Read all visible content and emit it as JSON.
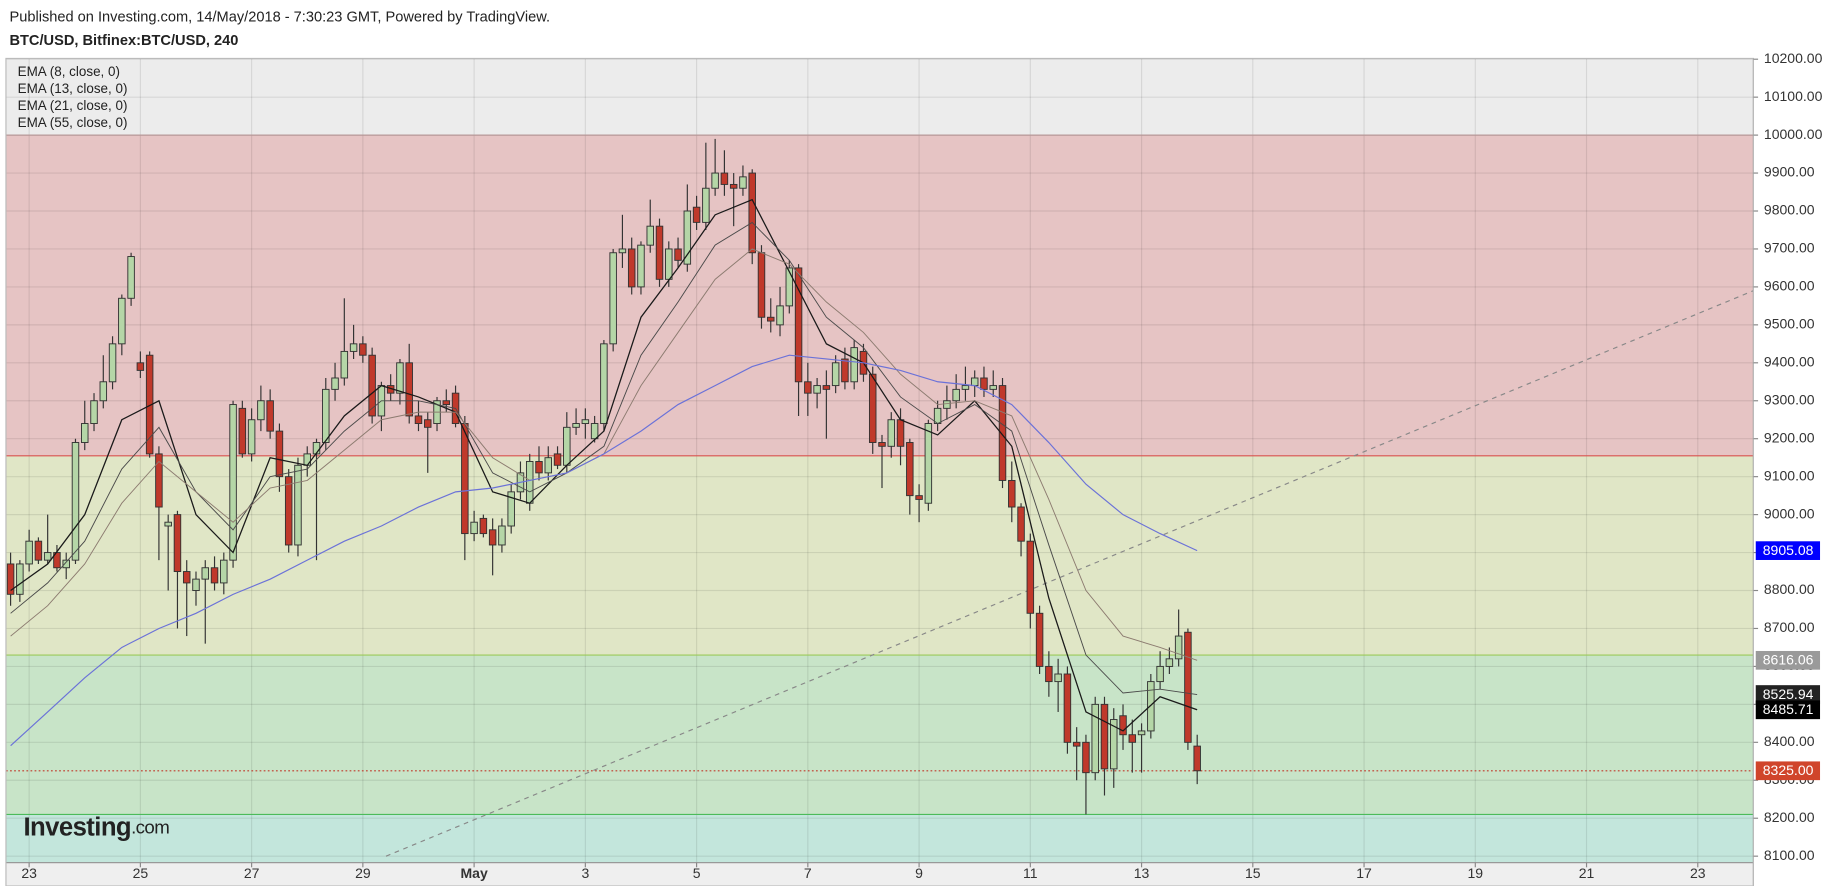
{
  "chart_data": {
    "type": "candlestick",
    "subtitle": "Published on Investing.com, 14/May/2018 - 7:30:23 GMT, Powered by TradingView.",
    "title": "BTC/USD, Bitfinex:BTC/USD, 240",
    "logo": [
      "Investing",
      ".com"
    ],
    "up_color": "#b5d6a7",
    "down_color": "#c0392b",
    "xlim": [
      -0.5,
      188
    ],
    "ylim": [
      8083,
      10202
    ],
    "xticks": [
      {
        "value": 2,
        "label": "23"
      },
      {
        "value": 14,
        "label": "25"
      },
      {
        "value": 26,
        "label": "27"
      },
      {
        "value": 38,
        "label": "29"
      },
      {
        "value": 50,
        "label": "May"
      },
      {
        "value": 62,
        "label": "3"
      },
      {
        "value": 74,
        "label": "5"
      },
      {
        "value": 86,
        "label": "7"
      },
      {
        "value": 98,
        "label": "9"
      },
      {
        "value": 110,
        "label": "11"
      },
      {
        "value": 122,
        "label": "13"
      },
      {
        "value": 134,
        "label": "15"
      },
      {
        "value": 146,
        "label": "17"
      },
      {
        "value": 158,
        "label": "19"
      },
      {
        "value": 170,
        "label": "21"
      },
      {
        "value": 182,
        "label": "23"
      }
    ],
    "yticks": [
      {
        "value": 8100,
        "label": "8100.00"
      },
      {
        "value": 8200,
        "label": "8200.00"
      },
      {
        "value": 8300,
        "label": "8300.00"
      },
      {
        "value": 8400,
        "label": "8400.00"
      },
      {
        "value": 8500,
        "label": "8500.00"
      },
      {
        "value": 8600,
        "label": "8600.00"
      },
      {
        "value": 8700,
        "label": "8700.00"
      },
      {
        "value": 8800,
        "label": "8800.00"
      },
      {
        "value": 8900,
        "label": "8900.00"
      },
      {
        "value": 9000,
        "label": "9000.00"
      },
      {
        "value": 9100,
        "label": "9100.00"
      },
      {
        "value": 9200,
        "label": "9200.00"
      },
      {
        "value": 9300,
        "label": "9300.00"
      },
      {
        "value": 9400,
        "label": "9400.00"
      },
      {
        "value": 9500,
        "label": "9500.00"
      },
      {
        "value": 9600,
        "label": "9600.00"
      },
      {
        "value": 9700,
        "label": "9700.00"
      },
      {
        "value": 9800,
        "label": "9800.00"
      },
      {
        "value": 9900,
        "label": "9900.00"
      },
      {
        "value": 10000,
        "label": "10000.00"
      },
      {
        "value": 10100,
        "label": "10100.00"
      },
      {
        "value": 10200,
        "label": "10200.00"
      }
    ],
    "grid": true,
    "bands": [
      {
        "from": 10202,
        "to": 10000,
        "color": "#ececec"
      },
      {
        "from": 10000,
        "to": 9155,
        "color": "#e6c4c4"
      },
      {
        "from": 9155,
        "to": 8630,
        "color": "#e0e6c6"
      },
      {
        "from": 8630,
        "to": 8210,
        "color": "#c8e4c8"
      },
      {
        "from": 8210,
        "to": 8083,
        "color": "#c3e6dc"
      }
    ],
    "levels": [
      {
        "value": 10000,
        "color": "#b89a9a"
      },
      {
        "value": 9155,
        "color": "#d9534f"
      },
      {
        "value": 8630,
        "color": "#9cc95a"
      },
      {
        "value": 8210,
        "color": "#4cbb5a"
      }
    ],
    "last_price_line": {
      "value": 8325,
      "color": "#c0392b"
    },
    "trendline": {
      "x": [
        40.5,
        188
      ],
      "values": [
        8100,
        9590
      ],
      "color": "#888"
    },
    "ohlc": [
      [
        8870,
        8900,
        8760,
        8790
      ],
      [
        8790,
        8880,
        8770,
        8870
      ],
      [
        8870,
        8960,
        8850,
        8930
      ],
      [
        8930,
        8940,
        8870,
        8880
      ],
      [
        8880,
        9000,
        8870,
        8900
      ],
      [
        8900,
        8920,
        8850,
        8860
      ],
      [
        8860,
        8900,
        8830,
        8880
      ],
      [
        8880,
        9200,
        8870,
        9190
      ],
      [
        9190,
        9300,
        9170,
        9240
      ],
      [
        9240,
        9320,
        9220,
        9300
      ],
      [
        9300,
        9420,
        9280,
        9350
      ],
      [
        9350,
        9470,
        9330,
        9450
      ],
      [
        9450,
        9580,
        9420,
        9570
      ],
      [
        9570,
        9690,
        9550,
        9680
      ],
      [
        9400,
        9430,
        9360,
        9380
      ],
      [
        9420,
        9430,
        9150,
        9160
      ],
      [
        9160,
        9180,
        8880,
        9020
      ],
      [
        8970,
        9000,
        8800,
        8980
      ],
      [
        9000,
        9010,
        8700,
        8850
      ],
      [
        8850,
        8880,
        8680,
        8820
      ],
      [
        8800,
        8850,
        8760,
        8830
      ],
      [
        8830,
        8880,
        8660,
        8860
      ],
      [
        8860,
        8890,
        8800,
        8820
      ],
      [
        8820,
        8900,
        8790,
        8880
      ],
      [
        8880,
        9300,
        8860,
        9290
      ],
      [
        9280,
        9300,
        9150,
        9160
      ],
      [
        9160,
        9280,
        9140,
        9250
      ],
      [
        9250,
        9340,
        9220,
        9300
      ],
      [
        9300,
        9330,
        9200,
        9220
      ],
      [
        9220,
        9240,
        9060,
        9100
      ],
      [
        9100,
        9120,
        8900,
        8920
      ],
      [
        8920,
        9150,
        8890,
        9130
      ],
      [
        9130,
        9180,
        9100,
        9160
      ],
      [
        9160,
        9200,
        8880,
        9190
      ],
      [
        9190,
        9360,
        9170,
        9330
      ],
      [
        9330,
        9400,
        9300,
        9360
      ],
      [
        9360,
        9570,
        9340,
        9430
      ],
      [
        9430,
        9500,
        9410,
        9450
      ],
      [
        9450,
        9470,
        9400,
        9420
      ],
      [
        9420,
        9440,
        9240,
        9260
      ],
      [
        9260,
        9350,
        9220,
        9340
      ],
      [
        9340,
        9370,
        9300,
        9320
      ],
      [
        9320,
        9410,
        9290,
        9400
      ],
      [
        9400,
        9450,
        9240,
        9260
      ],
      [
        9260,
        9300,
        9220,
        9240
      ],
      [
        9250,
        9270,
        9110,
        9230
      ],
      [
        9240,
        9310,
        9220,
        9300
      ],
      [
        9300,
        9330,
        9270,
        9290
      ],
      [
        9320,
        9340,
        9230,
        9240
      ],
      [
        9240,
        9260,
        8880,
        8950
      ],
      [
        8950,
        9010,
        8930,
        8980
      ],
      [
        8990,
        9000,
        8940,
        8950
      ],
      [
        8960,
        8990,
        8840,
        8920
      ],
      [
        8920,
        8990,
        8900,
        8970
      ],
      [
        8970,
        9080,
        8950,
        9060
      ],
      [
        9060,
        9140,
        9040,
        9110
      ],
      [
        9030,
        9160,
        9010,
        9140
      ],
      [
        9140,
        9180,
        9090,
        9110
      ],
      [
        9110,
        9180,
        9090,
        9150
      ],
      [
        9160,
        9180,
        9120,
        9130
      ],
      [
        9130,
        9270,
        9110,
        9230
      ],
      [
        9230,
        9280,
        9210,
        9240
      ],
      [
        9240,
        9280,
        9200,
        9250
      ],
      [
        9200,
        9260,
        9190,
        9240
      ],
      [
        9240,
        9460,
        9220,
        9450
      ],
      [
        9450,
        9700,
        9430,
        9690
      ],
      [
        9690,
        9790,
        9650,
        9700
      ],
      [
        9700,
        9730,
        9580,
        9600
      ],
      [
        9600,
        9720,
        9580,
        9710
      ],
      [
        9710,
        9830,
        9690,
        9760
      ],
      [
        9760,
        9780,
        9600,
        9620
      ],
      [
        9620,
        9720,
        9600,
        9700
      ],
      [
        9700,
        9730,
        9650,
        9670
      ],
      [
        9660,
        9870,
        9640,
        9800
      ],
      [
        9810,
        9840,
        9750,
        9770
      ],
      [
        9770,
        9980,
        9750,
        9860
      ],
      [
        9860,
        9990,
        9840,
        9900
      ],
      [
        9900,
        9960,
        9840,
        9870
      ],
      [
        9870,
        9900,
        9760,
        9860
      ],
      [
        9860,
        9920,
        9840,
        9890
      ],
      [
        9900,
        9910,
        9660,
        9690
      ],
      [
        9690,
        9710,
        9490,
        9520
      ],
      [
        9520,
        9570,
        9480,
        9510
      ],
      [
        9500,
        9600,
        9470,
        9550
      ],
      [
        9550,
        9670,
        9530,
        9650
      ],
      [
        9650,
        9660,
        9260,
        9350
      ],
      [
        9350,
        9400,
        9260,
        9320
      ],
      [
        9320,
        9360,
        9280,
        9340
      ],
      [
        9340,
        9380,
        9200,
        9330
      ],
      [
        9340,
        9420,
        9320,
        9400
      ],
      [
        9410,
        9440,
        9330,
        9350
      ],
      [
        9350,
        9460,
        9330,
        9440
      ],
      [
        9430,
        9450,
        9350,
        9370
      ],
      [
        9370,
        9390,
        9160,
        9190
      ],
      [
        9190,
        9210,
        9070,
        9180
      ],
      [
        9180,
        9270,
        9150,
        9250
      ],
      [
        9250,
        9280,
        9130,
        9180
      ],
      [
        9190,
        9200,
        9000,
        9050
      ],
      [
        9050,
        9080,
        8980,
        9040
      ],
      [
        9030,
        9250,
        9010,
        9240
      ],
      [
        9240,
        9300,
        9220,
        9280
      ],
      [
        9280,
        9340,
        9250,
        9300
      ],
      [
        9300,
        9370,
        9280,
        9330
      ],
      [
        9330,
        9390,
        9300,
        9340
      ],
      [
        9340,
        9380,
        9310,
        9360
      ],
      [
        9360,
        9390,
        9310,
        9330
      ],
      [
        9330,
        9380,
        9310,
        9340
      ],
      [
        9340,
        9360,
        9070,
        9090
      ],
      [
        9090,
        9140,
        8980,
        9020
      ],
      [
        9020,
        9030,
        8890,
        8930
      ],
      [
        8930,
        8950,
        8700,
        8740
      ],
      [
        8740,
        8760,
        8580,
        8600
      ],
      [
        8600,
        8640,
        8520,
        8560
      ],
      [
        8560,
        8620,
        8480,
        8580
      ],
      [
        8580,
        8600,
        8370,
        8400
      ],
      [
        8400,
        8440,
        8300,
        8390
      ],
      [
        8400,
        8420,
        8210,
        8320
      ],
      [
        8320,
        8520,
        8300,
        8500
      ],
      [
        8500,
        8520,
        8260,
        8330
      ],
      [
        8330,
        8490,
        8280,
        8460
      ],
      [
        8470,
        8500,
        8380,
        8420
      ],
      [
        8420,
        8460,
        8320,
        8400
      ],
      [
        8420,
        8450,
        8320,
        8430
      ],
      [
        8430,
        8580,
        8410,
        8560
      ],
      [
        8560,
        8640,
        8540,
        8600
      ],
      [
        8600,
        8650,
        8580,
        8620
      ],
      [
        8620,
        8750,
        8600,
        8680
      ],
      [
        8690,
        8700,
        8380,
        8400
      ],
      [
        8390,
        8420,
        8290,
        8325
      ]
    ],
    "series": [
      {
        "name": "EMA (8, close, 0)",
        "color": "#1a1a1a",
        "width": 1.1,
        "x": [
          0,
          4,
          8,
          12,
          16,
          20,
          24,
          28,
          32,
          36,
          40,
          44,
          48,
          52,
          56,
          60,
          64,
          68,
          72,
          76,
          80,
          84,
          88,
          92,
          96,
          100,
          104,
          108,
          112,
          116,
          120,
          124,
          128
        ],
        "values": [
          8800,
          8870,
          9000,
          9250,
          9300,
          9000,
          8900,
          9150,
          9130,
          9260,
          9340,
          9310,
          9270,
          9060,
          9030,
          9130,
          9220,
          9520,
          9650,
          9790,
          9830,
          9640,
          9450,
          9400,
          9250,
          9210,
          9300,
          9180,
          8780,
          8480,
          8430,
          8520,
          8485.71
        ]
      },
      {
        "name": "EMA (13, close, 0)",
        "color": "#4a4a4a",
        "width": 0.8,
        "x": [
          0,
          4,
          8,
          12,
          16,
          20,
          24,
          28,
          32,
          36,
          40,
          44,
          48,
          52,
          56,
          60,
          64,
          68,
          72,
          76,
          80,
          84,
          88,
          92,
          96,
          100,
          104,
          108,
          112,
          116,
          120,
          124,
          128
        ],
        "values": [
          8740,
          8820,
          8930,
          9120,
          9230,
          9060,
          8960,
          9100,
          9120,
          9220,
          9300,
          9300,
          9280,
          9110,
          9060,
          9110,
          9180,
          9420,
          9560,
          9710,
          9770,
          9670,
          9520,
          9440,
          9310,
          9240,
          9290,
          9220,
          8920,
          8630,
          8530,
          8540,
          8525.94
        ]
      },
      {
        "name": "EMA (21, close, 0)",
        "color": "#8c7b70",
        "width": 0.8,
        "x": [
          0,
          4,
          8,
          12,
          16,
          20,
          24,
          28,
          32,
          36,
          40,
          44,
          48,
          52,
          56,
          60,
          64,
          68,
          72,
          76,
          80,
          84,
          88,
          92,
          96,
          100,
          104,
          108,
          112,
          116,
          120,
          124,
          128
        ],
        "values": [
          8680,
          8760,
          8870,
          9030,
          9140,
          9060,
          8980,
          9070,
          9090,
          9170,
          9250,
          9270,
          9270,
          9150,
          9090,
          9110,
          9160,
          9340,
          9480,
          9620,
          9700,
          9660,
          9560,
          9480,
          9370,
          9290,
          9300,
          9260,
          9040,
          8800,
          8680,
          8650,
          8616.06
        ]
      },
      {
        "name": "EMA (55, close, 0)",
        "color": "#6b72d8",
        "width": 1,
        "x": [
          0,
          4,
          8,
          12,
          16,
          20,
          24,
          28,
          32,
          36,
          40,
          44,
          48,
          52,
          56,
          60,
          64,
          68,
          72,
          76,
          80,
          84,
          88,
          92,
          96,
          100,
          104,
          108,
          112,
          116,
          120,
          124,
          128
        ],
        "values": [
          8391,
          8480,
          8570,
          8650,
          8700,
          8740,
          8790,
          8830,
          8880,
          8930,
          8970,
          9020,
          9060,
          9070,
          9090,
          9110,
          9160,
          9220,
          9290,
          9340,
          9390,
          9420,
          9410,
          9400,
          9380,
          9350,
          9340,
          9290,
          9190,
          9080,
          9000,
          8950,
          8905.08
        ]
      }
    ],
    "price_tags": [
      {
        "value": 8905.08,
        "label": "8905.08",
        "color": "#0000ff",
        "text_color": "#ffffff"
      },
      {
        "value": 8616.06,
        "label": "8616.06",
        "color": "#9a9a9a",
        "text_color": "#ffffff"
      },
      {
        "value": 8525.94,
        "label": "8525.94",
        "color": "#222222",
        "text_color": "#ffffff"
      },
      {
        "value": 8485.71,
        "label": "8485.71",
        "color": "#000000",
        "text_color": "#ffffff"
      },
      {
        "value": 8325,
        "label": "8325.00",
        "color": "#d0452b",
        "text_color": "#ffffff"
      }
    ]
  }
}
